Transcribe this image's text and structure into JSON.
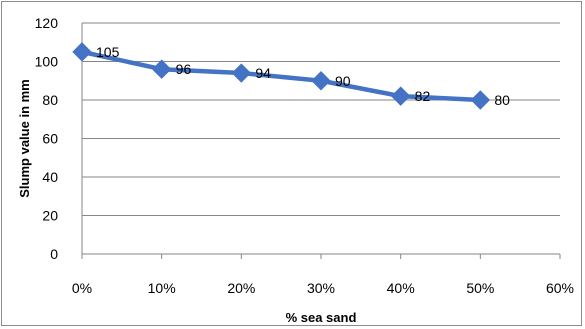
{
  "chart_data": {
    "type": "line",
    "title": "",
    "xlabel": "% sea sand",
    "ylabel": "Slump value in mm",
    "x": [
      0,
      10,
      20,
      30,
      40,
      50
    ],
    "xlim": [
      0,
      60
    ],
    "ylim": [
      0,
      120
    ],
    "x_ticks": [
      "0%",
      "10%",
      "20%",
      "30%",
      "40%",
      "50%",
      "60%"
    ],
    "y_ticks": [
      "0",
      "20",
      "40",
      "60",
      "80",
      "100",
      "120"
    ],
    "series": [
      {
        "values": [
          105,
          96,
          94,
          90,
          82,
          80
        ],
        "data_labels": [
          "105",
          "96",
          "94",
          "90",
          "82",
          "80"
        ],
        "color": "#4472c4",
        "marker": "diamond"
      }
    ],
    "grid": true,
    "legend": "none"
  }
}
